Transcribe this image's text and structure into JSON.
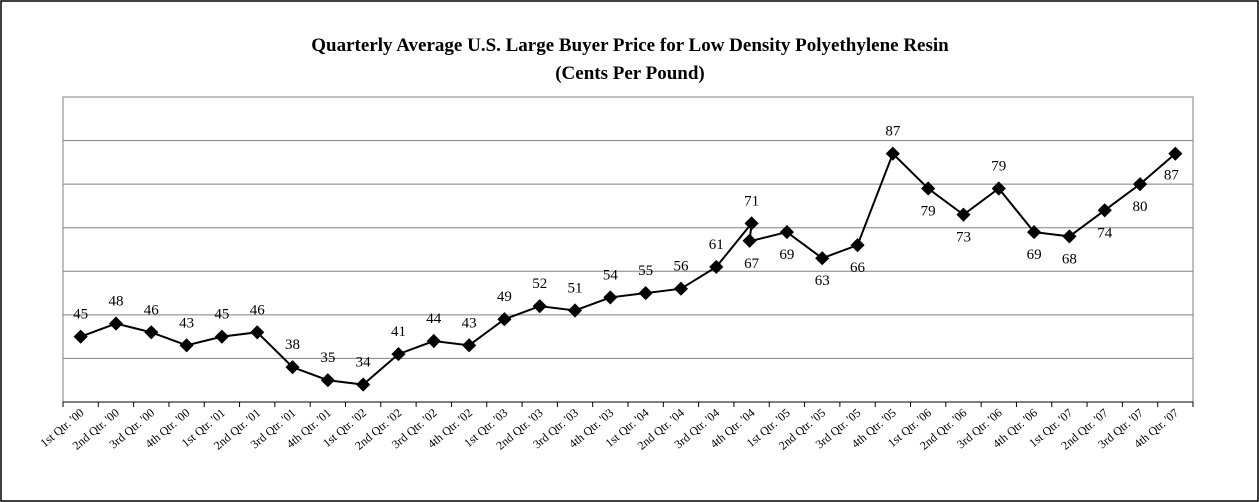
{
  "chart_data": {
    "type": "line",
    "title": "Quarterly Average U.S. Large Buyer Price for Low Density Polyethylene Resin",
    "subtitle": "(Cents Per Pound)",
    "categories": [
      "1st Qtr. '00",
      "2nd Qtr. '00",
      "3rd Qtr. '00",
      "4th Qtr. '00",
      "1st Qtr. '01",
      "2nd Qtr. '01",
      "3rd Qtr. '01",
      "4th Qtr. '01",
      "1st Qtr. '02",
      "2nd Qtr. '02",
      "3rd Qtr. '02",
      "4th Qtr. '02",
      "1st Qtr. '03",
      "2nd Qtr. '03",
      "3rd Qtr. '03",
      "4th Qtr. '03",
      "1st Qtr. '04",
      "2nd Qtr. '04",
      "3rd Qtr. '04",
      "4th Qtr. '04",
      "1st Qtr. '05",
      "2nd Qtr. '05",
      "3rd Qtr. '05",
      "4th Qtr. '05",
      "1st Qtr. '06",
      "2nd Qtr. '06",
      "3rd Qtr. '06",
      "4th Qtr. '06",
      "1st Qtr. '07",
      "2nd Qtr. '07",
      "3rd Qtr. '07",
      "4th Qtr. '07"
    ],
    "series": [
      {
        "color": "#000000",
        "values": [
          45,
          48,
          46,
          43,
          45,
          46,
          38,
          35,
          34,
          41,
          44,
          43,
          49,
          52,
          51,
          54,
          55,
          56,
          61,
          71,
          null,
          null,
          null,
          null,
          null,
          null,
          null,
          null,
          null,
          null,
          null,
          null
        ]
      },
      {
        "color": "#000000",
        "values": [
          null,
          null,
          null,
          null,
          null,
          null,
          null,
          null,
          null,
          null,
          null,
          null,
          null,
          null,
          null,
          null,
          null,
          null,
          null,
          67,
          69,
          63,
          66,
          87,
          79,
          73,
          79,
          69,
          68,
          74,
          80,
          87
        ]
      }
    ],
    "ylim": [
      30,
      100
    ],
    "yticks": [
      30,
      40,
      50,
      60,
      70,
      80,
      90,
      100
    ],
    "grid": true
  }
}
